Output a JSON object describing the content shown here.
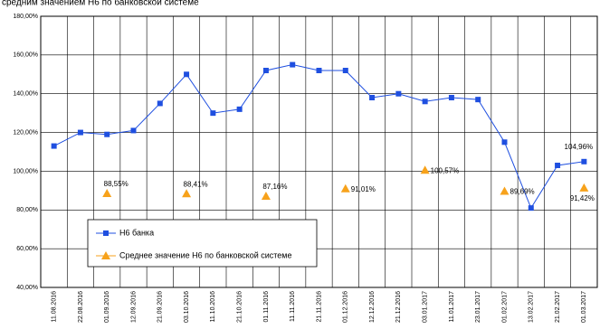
{
  "chart_data": {
    "type": "line",
    "title": "средним значением Н6 по банковской системе",
    "categories": [
      "11.08.2016",
      "22.08.2016",
      "01.09.2016",
      "12.09.2016",
      "21.09.2016",
      "03.10.2016",
      "11.10.2016",
      "21.10.2016",
      "01.11.2016",
      "11.11.2016",
      "21.11.2016",
      "01.12.2016",
      "12.12.2016",
      "21.12.2016",
      "03.01.2017",
      "11.01.2017",
      "23.01.2017",
      "01.02.2017",
      "13.02.2017",
      "21.02.2017",
      "01.03.2017"
    ],
    "series": [
      {
        "name": "Н6 банка",
        "color": "#1f4fe0",
        "marker": "square",
        "values": [
          113,
          120,
          119,
          121,
          135,
          150,
          130,
          132,
          152,
          155,
          152,
          152,
          138,
          140,
          136,
          138,
          137,
          115,
          81,
          103,
          104.96
        ],
        "value_labels": [
          null,
          null,
          null,
          null,
          null,
          null,
          null,
          null,
          null,
          null,
          null,
          null,
          null,
          null,
          null,
          null,
          null,
          null,
          null,
          null,
          "104,96%"
        ]
      },
      {
        "name": "Среднее значение Н6 по банковской системе",
        "color": "#f7a21b",
        "marker": "triangle",
        "values": [
          null,
          null,
          88.55,
          null,
          null,
          88.41,
          null,
          null,
          87.16,
          null,
          null,
          91.01,
          null,
          null,
          100.57,
          null,
          null,
          89.69,
          null,
          null,
          91.42
        ],
        "value_labels": [
          null,
          null,
          "88,55%",
          null,
          null,
          "88,41%",
          null,
          null,
          "87,16%",
          null,
          null,
          "91,01%",
          null,
          null,
          "100,57%",
          null,
          null,
          "89,69%",
          null,
          null,
          "91,42%"
        ]
      }
    ],
    "ylim": [
      40,
      180
    ],
    "yticks": [
      {
        "value": 40,
        "label": "40,00%"
      },
      {
        "value": 60,
        "label": "60,00%"
      },
      {
        "value": 80,
        "label": "80,00%"
      },
      {
        "value": 100,
        "label": "100,00%"
      },
      {
        "value": 120,
        "label": "120,00%"
      },
      {
        "value": 140,
        "label": "140,00%"
      },
      {
        "value": 160,
        "label": "160,00%"
      },
      {
        "value": 180,
        "label": "180,00%"
      }
    ],
    "grid": true
  }
}
